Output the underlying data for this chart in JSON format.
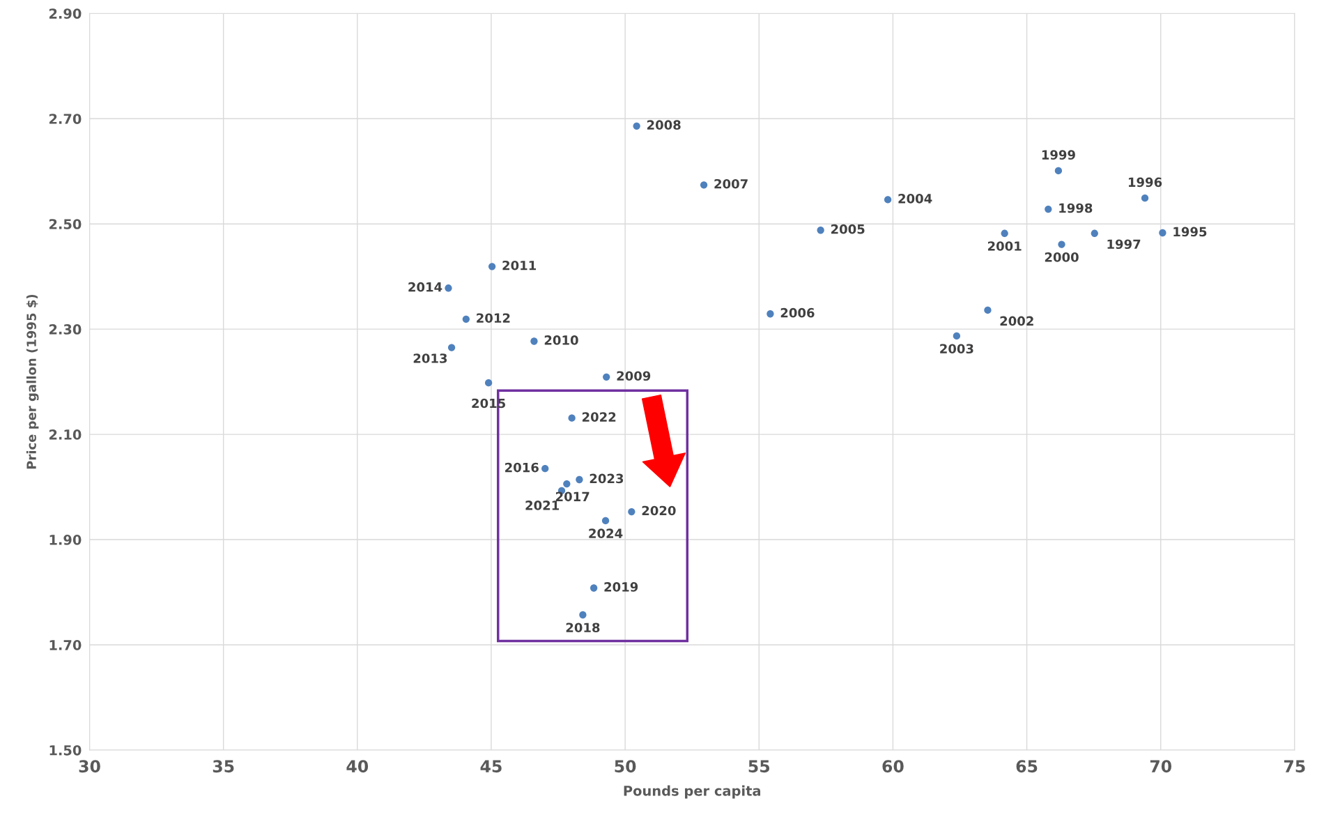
{
  "chart_data": {
    "type": "scatter",
    "xlabel": "Pounds per capita",
    "ylabel": "Price per gallon (1995 $)",
    "x": [
      70.07,
      69.41,
      67.53,
      65.8,
      66.18,
      66.3,
      64.17,
      63.54,
      62.38,
      59.81,
      57.3,
      55.42,
      52.94,
      50.43,
      49.3,
      46.6,
      45.03,
      44.06,
      43.52,
      43.4,
      44.9,
      47.01,
      47.82,
      48.42,
      48.83,
      50.24,
      47.63,
      48.01,
      48.29,
      49.27
    ],
    "series": [
      {
        "color": "#4f81bd",
        "values": [
          2.483,
          2.549,
          2.482,
          2.528,
          2.601,
          2.461,
          2.482,
          2.336,
          2.287,
          2.546,
          2.488,
          2.329,
          2.574,
          2.686,
          2.209,
          2.277,
          2.419,
          2.319,
          2.265,
          2.378,
          2.198,
          2.035,
          2.006,
          1.757,
          1.808,
          1.953,
          1.993,
          2.131,
          2.014,
          1.936
        ]
      }
    ],
    "annotations": [
      {
        "text": "1995",
        "x": 70.07,
        "y": 2.483
      },
      {
        "text": "1996",
        "x": 69.41,
        "y": 2.549
      },
      {
        "text": "1997",
        "x": 67.53,
        "y": 2.482
      },
      {
        "text": "1998",
        "x": 65.8,
        "y": 2.528
      },
      {
        "text": "1999",
        "x": 66.18,
        "y": 2.601
      },
      {
        "text": "2000",
        "x": 66.3,
        "y": 2.461
      },
      {
        "text": "2001",
        "x": 64.17,
        "y": 2.482
      },
      {
        "text": "2002",
        "x": 63.54,
        "y": 2.336
      },
      {
        "text": "2003",
        "x": 62.38,
        "y": 2.287
      },
      {
        "text": "2004",
        "x": 59.81,
        "y": 2.546
      },
      {
        "text": "2005",
        "x": 57.3,
        "y": 2.488
      },
      {
        "text": "2006",
        "x": 55.42,
        "y": 2.329
      },
      {
        "text": "2007",
        "x": 52.94,
        "y": 2.574
      },
      {
        "text": "2008",
        "x": 50.43,
        "y": 2.686
      },
      {
        "text": "2009",
        "x": 49.3,
        "y": 2.209
      },
      {
        "text": "2010",
        "x": 46.6,
        "y": 2.277
      },
      {
        "text": "2011",
        "x": 45.03,
        "y": 2.419
      },
      {
        "text": "2012",
        "x": 44.06,
        "y": 2.319
      },
      {
        "text": "2013",
        "x": 43.52,
        "y": 2.265
      },
      {
        "text": "2014",
        "x": 43.4,
        "y": 2.378
      },
      {
        "text": "2015",
        "x": 44.9,
        "y": 2.198
      },
      {
        "text": "2016",
        "x": 47.01,
        "y": 2.035
      },
      {
        "text": "2017",
        "x": 47.82,
        "y": 2.006
      },
      {
        "text": "2018",
        "x": 48.42,
        "y": 1.757
      },
      {
        "text": "2019",
        "x": 48.83,
        "y": 1.808
      },
      {
        "text": "2020",
        "x": 50.24,
        "y": 1.953
      },
      {
        "text": "2021",
        "x": 47.63,
        "y": 1.993
      },
      {
        "text": "2022",
        "x": 48.01,
        "y": 2.131
      },
      {
        "text": "2023",
        "x": 48.29,
        "y": 2.014
      },
      {
        "text": "2024",
        "x": 49.27,
        "y": 1.936
      }
    ],
    "xlim": [
      30,
      75
    ],
    "xticks": [
      30,
      35,
      40,
      45,
      50,
      55,
      60,
      65,
      70,
      75
    ],
    "ylim": [
      1.5,
      2.9
    ],
    "yticks": [
      {
        "value": 1.5,
        "label": "1.50"
      },
      {
        "value": 1.7,
        "label": "1.70"
      },
      {
        "value": 1.9,
        "label": "1.90"
      },
      {
        "value": 2.1,
        "label": "2.10"
      },
      {
        "value": 2.3,
        "label": "2.30"
      },
      {
        "value": 2.5,
        "label": "2.50"
      },
      {
        "value": 2.7,
        "label": "2.70"
      },
      {
        "value": 2.9,
        "label": "2.90"
      }
    ],
    "grid": true,
    "marker": "circle"
  }
}
